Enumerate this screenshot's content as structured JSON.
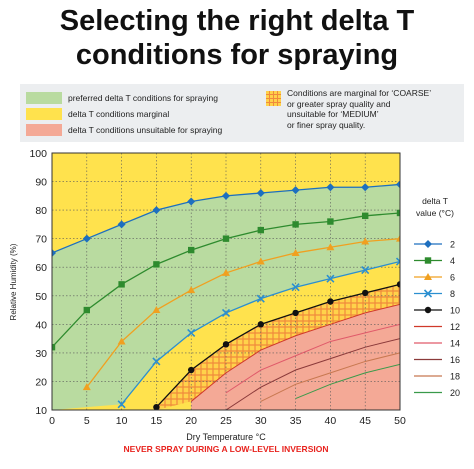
{
  "title_line1": "Selecting the right delta T",
  "title_line2": "conditions for spraying",
  "legend": {
    "preferred": "preferred delta T conditions for spraying",
    "marginal": "delta T conditions marginal",
    "unsuitable": "delta T conditions unsuitable for spraying",
    "marginal_spray_lines": [
      "Conditions are marginal for ‘COARSE’",
      "or greater spray quality and",
      "unsuitable for ‘MEDIUM’",
      "or finer spray quality."
    ],
    "delta_t_title_line1": "delta T",
    "delta_t_title_line2": "value (°C)"
  },
  "colors": {
    "preferred": "#b9dba0",
    "marginal": "#ffe24d",
    "unsuitable": "#f4a996",
    "hatch": "#f08a3c",
    "warning": "#e8231e"
  },
  "chart_data": {
    "type": "line",
    "xlabel": "Dry Temperature °C",
    "ylabel": "Relative Humidity (%)",
    "xlim": [
      0,
      50
    ],
    "ylim": [
      10,
      100
    ],
    "x_ticks": [
      0,
      5,
      10,
      15,
      20,
      25,
      30,
      35,
      40,
      45,
      50
    ],
    "y_ticks": [
      10,
      20,
      30,
      40,
      50,
      60,
      70,
      80,
      90,
      100
    ],
    "x": [
      0,
      5,
      10,
      15,
      20,
      25,
      30,
      35,
      40,
      45,
      50
    ],
    "series": [
      {
        "name": "2",
        "color": "#1d6fbf",
        "marker": "diamond",
        "values": [
          65,
          70,
          75,
          80,
          83,
          85,
          86,
          87,
          88,
          88,
          89
        ]
      },
      {
        "name": "4",
        "color": "#2e8b2e",
        "marker": "square",
        "values": [
          32,
          45,
          54,
          61,
          66,
          70,
          73,
          75,
          76,
          78,
          79
        ]
      },
      {
        "name": "6",
        "color": "#f0a020",
        "marker": "triangle",
        "values": [
          null,
          18,
          34,
          45,
          52,
          58,
          62,
          65,
          67,
          69,
          70
        ]
      },
      {
        "name": "8",
        "color": "#2b8fd0",
        "marker": "x",
        "values": [
          null,
          null,
          12,
          27,
          37,
          44,
          49,
          53,
          56,
          59,
          62
        ]
      },
      {
        "name": "10",
        "color": "#111111",
        "marker": "circle",
        "values": [
          null,
          null,
          null,
          11,
          24,
          33,
          40,
          44,
          48,
          51,
          54
        ]
      },
      {
        "name": "12",
        "color": "#d0392a",
        "marker": "none",
        "values": [
          null,
          null,
          null,
          null,
          13,
          23,
          31,
          36,
          40,
          44,
          47
        ]
      },
      {
        "name": "14",
        "color": "#e05a6a",
        "marker": "none",
        "values": [
          null,
          null,
          null,
          null,
          null,
          16,
          24,
          29,
          34,
          37,
          40
        ]
      },
      {
        "name": "16",
        "color": "#8b3a3a",
        "marker": "none",
        "values": [
          null,
          null,
          null,
          null,
          null,
          10,
          18,
          24,
          28,
          32,
          35
        ]
      },
      {
        "name": "18",
        "color": "#c87850",
        "marker": "none",
        "values": [
          null,
          null,
          null,
          null,
          null,
          null,
          13,
          19,
          23,
          27,
          30
        ]
      },
      {
        "name": "20",
        "color": "#3a9a4a",
        "marker": "none",
        "values": [
          null,
          null,
          null,
          null,
          null,
          null,
          null,
          14,
          19,
          23,
          26
        ]
      }
    ]
  },
  "footer_warning": "NEVER SPRAY DURING A LOW-LEVEL INVERSION"
}
